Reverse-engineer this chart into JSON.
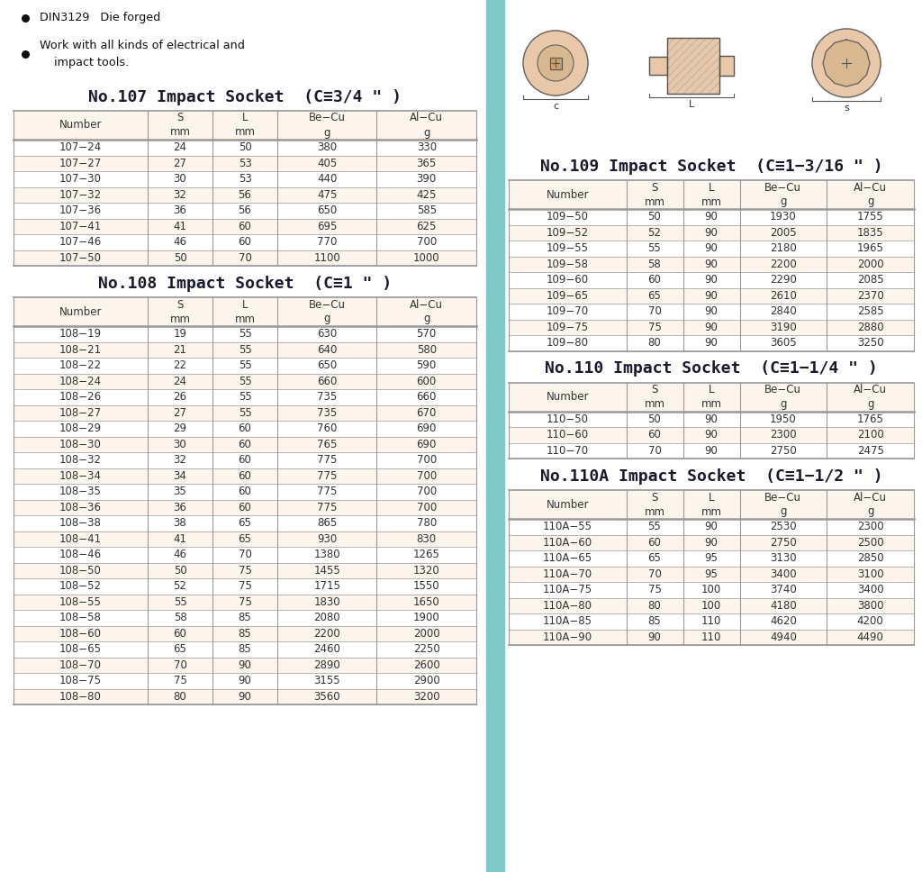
{
  "bg_color": "#ffffff",
  "divider_color": "#7ec8c8",
  "header_bg": "#fdf5eb",
  "row_bg_odd": "#ffffff",
  "row_bg_even": "#fdf5eb",
  "table_border_color": "#999999",
  "bullets": [
    "DIN3129   Die forged",
    "Work with all kinds of electrical and\n    impact tools."
  ],
  "table107": {
    "title": "No.107 Impact Socket  (C≡3/4 \" )",
    "headers": [
      "Number",
      "S\nmm",
      "L\nmm",
      "Be−Cu\ng",
      "Al−Cu\ng"
    ],
    "rows": [
      [
        "107−24",
        "24",
        "50",
        "380",
        "330"
      ],
      [
        "107−27",
        "27",
        "53",
        "405",
        "365"
      ],
      [
        "107−30",
        "30",
        "53",
        "440",
        "390"
      ],
      [
        "107−32",
        "32",
        "56",
        "475",
        "425"
      ],
      [
        "107−36",
        "36",
        "56",
        "650",
        "585"
      ],
      [
        "107−41",
        "41",
        "60",
        "695",
        "625"
      ],
      [
        "107−46",
        "46",
        "60",
        "770",
        "700"
      ],
      [
        "107−50",
        "50",
        "70",
        "1100",
        "1000"
      ]
    ]
  },
  "table108": {
    "title": "No.108 Impact Socket  (C≡1 \" )",
    "headers": [
      "Number",
      "S\nmm",
      "L\nmm",
      "Be−Cu\ng",
      "Al−Cu\ng"
    ],
    "rows": [
      [
        "108−19",
        "19",
        "55",
        "630",
        "570"
      ],
      [
        "108−21",
        "21",
        "55",
        "640",
        "580"
      ],
      [
        "108−22",
        "22",
        "55",
        "650",
        "590"
      ],
      [
        "108−24",
        "24",
        "55",
        "660",
        "600"
      ],
      [
        "108−26",
        "26",
        "55",
        "735",
        "660"
      ],
      [
        "108−27",
        "27",
        "55",
        "735",
        "670"
      ],
      [
        "108−29",
        "29",
        "60",
        "760",
        "690"
      ],
      [
        "108−30",
        "30",
        "60",
        "765",
        "690"
      ],
      [
        "108−32",
        "32",
        "60",
        "775",
        "700"
      ],
      [
        "108−34",
        "34",
        "60",
        "775",
        "700"
      ],
      [
        "108−35",
        "35",
        "60",
        "775",
        "700"
      ],
      [
        "108−36",
        "36",
        "60",
        "775",
        "700"
      ],
      [
        "108−38",
        "38",
        "65",
        "865",
        "780"
      ],
      [
        "108−41",
        "41",
        "65",
        "930",
        "830"
      ],
      [
        "108−46",
        "46",
        "70",
        "1380",
        "1265"
      ],
      [
        "108−50",
        "50",
        "75",
        "1455",
        "1320"
      ],
      [
        "108−52",
        "52",
        "75",
        "1715",
        "1550"
      ],
      [
        "108−55",
        "55",
        "75",
        "1830",
        "1650"
      ],
      [
        "108−58",
        "58",
        "85",
        "2080",
        "1900"
      ],
      [
        "108−60",
        "60",
        "85",
        "2200",
        "2000"
      ],
      [
        "108−65",
        "65",
        "85",
        "2460",
        "2250"
      ],
      [
        "108−70",
        "70",
        "90",
        "2890",
        "2600"
      ],
      [
        "108−75",
        "75",
        "90",
        "3155",
        "2900"
      ],
      [
        "108−80",
        "80",
        "90",
        "3560",
        "3200"
      ]
    ]
  },
  "table109": {
    "title": "No.109 Impact Socket  (C≡1−3/16 \" )",
    "headers": [
      "Number",
      "S\nmm",
      "L\nmm",
      "Be−Cu\ng",
      "Al−Cu\ng"
    ],
    "rows": [
      [
        "109−50",
        "50",
        "90",
        "1930",
        "1755"
      ],
      [
        "109−52",
        "52",
        "90",
        "2005",
        "1835"
      ],
      [
        "109−55",
        "55",
        "90",
        "2180",
        "1965"
      ],
      [
        "109−58",
        "58",
        "90",
        "2200",
        "2000"
      ],
      [
        "109−60",
        "60",
        "90",
        "2290",
        "2085"
      ],
      [
        "109−65",
        "65",
        "90",
        "2610",
        "2370"
      ],
      [
        "109−70",
        "70",
        "90",
        "2840",
        "2585"
      ],
      [
        "109−75",
        "75",
        "90",
        "3190",
        "2880"
      ],
      [
        "109−80",
        "80",
        "90",
        "3605",
        "3250"
      ]
    ]
  },
  "table110": {
    "title": "No.110 Impact Socket  (C≡1−1/4 \" )",
    "headers": [
      "Number",
      "S\nmm",
      "L\nmm",
      "Be−Cu\ng",
      "Al−Cu\ng"
    ],
    "rows": [
      [
        "110−50",
        "50",
        "90",
        "1950",
        "1765"
      ],
      [
        "110−60",
        "60",
        "90",
        "2300",
        "2100"
      ],
      [
        "110−70",
        "70",
        "90",
        "2750",
        "2475"
      ]
    ]
  },
  "table110A": {
    "title": "No.110A Impact Socket  (C≡1−1/2 \" )",
    "headers": [
      "Number",
      "S\nmm",
      "L\nmm",
      "Be−Cu\ng",
      "Al−Cu\ng"
    ],
    "rows": [
      [
        "110A−55",
        "55",
        "90",
        "2530",
        "2300"
      ],
      [
        "110A−60",
        "60",
        "90",
        "2750",
        "2500"
      ],
      [
        "110A−65",
        "65",
        "95",
        "3130",
        "2850"
      ],
      [
        "110A−70",
        "70",
        "95",
        "3400",
        "3100"
      ],
      [
        "110A−75",
        "75",
        "100",
        "3740",
        "3400"
      ],
      [
        "110A−80",
        "80",
        "100",
        "4180",
        "3800"
      ],
      [
        "110A−85",
        "85",
        "110",
        "4620",
        "4200"
      ],
      [
        "110A−90",
        "90",
        "110",
        "4940",
        "4490"
      ]
    ]
  }
}
